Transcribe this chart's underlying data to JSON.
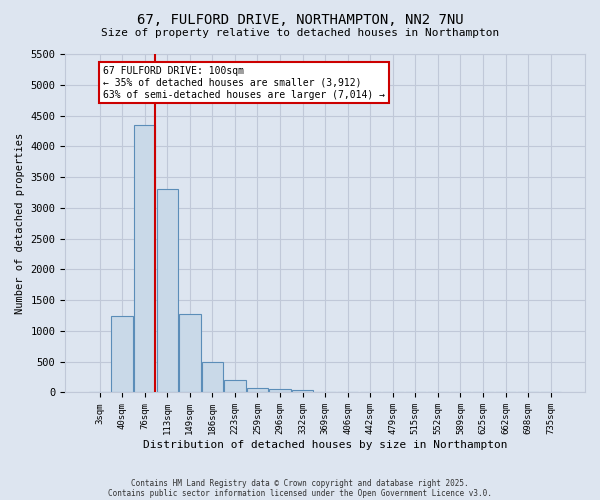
{
  "title_line1": "67, FULFORD DRIVE, NORTHAMPTON, NN2 7NU",
  "title_line2": "Size of property relative to detached houses in Northampton",
  "xlabel": "Distribution of detached houses by size in Northampton",
  "ylabel": "Number of detached properties",
  "categories": [
    "3sqm",
    "40sqm",
    "76sqm",
    "113sqm",
    "149sqm",
    "186sqm",
    "223sqm",
    "259sqm",
    "296sqm",
    "332sqm",
    "369sqm",
    "406sqm",
    "442sqm",
    "479sqm",
    "515sqm",
    "552sqm",
    "589sqm",
    "625sqm",
    "662sqm",
    "698sqm",
    "735sqm"
  ],
  "values": [
    0,
    1250,
    4350,
    3300,
    1270,
    490,
    210,
    75,
    55,
    45,
    0,
    0,
    0,
    0,
    0,
    0,
    0,
    0,
    0,
    0,
    0
  ],
  "bar_color": "#c9d9e8",
  "bar_edge_color": "#5b8db8",
  "grid_color": "#c0c8d8",
  "background_color": "#dde5f0",
  "vline_color": "#cc0000",
  "vline_x": 2.47,
  "annotation_text": "67 FULFORD DRIVE: 100sqm\n← 35% of detached houses are smaller (3,912)\n63% of semi-detached houses are larger (7,014) →",
  "annotation_box_color": "#ffffff",
  "annotation_box_edge": "#cc0000",
  "footer_line1": "Contains HM Land Registry data © Crown copyright and database right 2025.",
  "footer_line2": "Contains public sector information licensed under the Open Government Licence v3.0.",
  "ylim": [
    0,
    5500
  ],
  "yticks": [
    0,
    500,
    1000,
    1500,
    2000,
    2500,
    3000,
    3500,
    4000,
    4500,
    5000,
    5500
  ]
}
